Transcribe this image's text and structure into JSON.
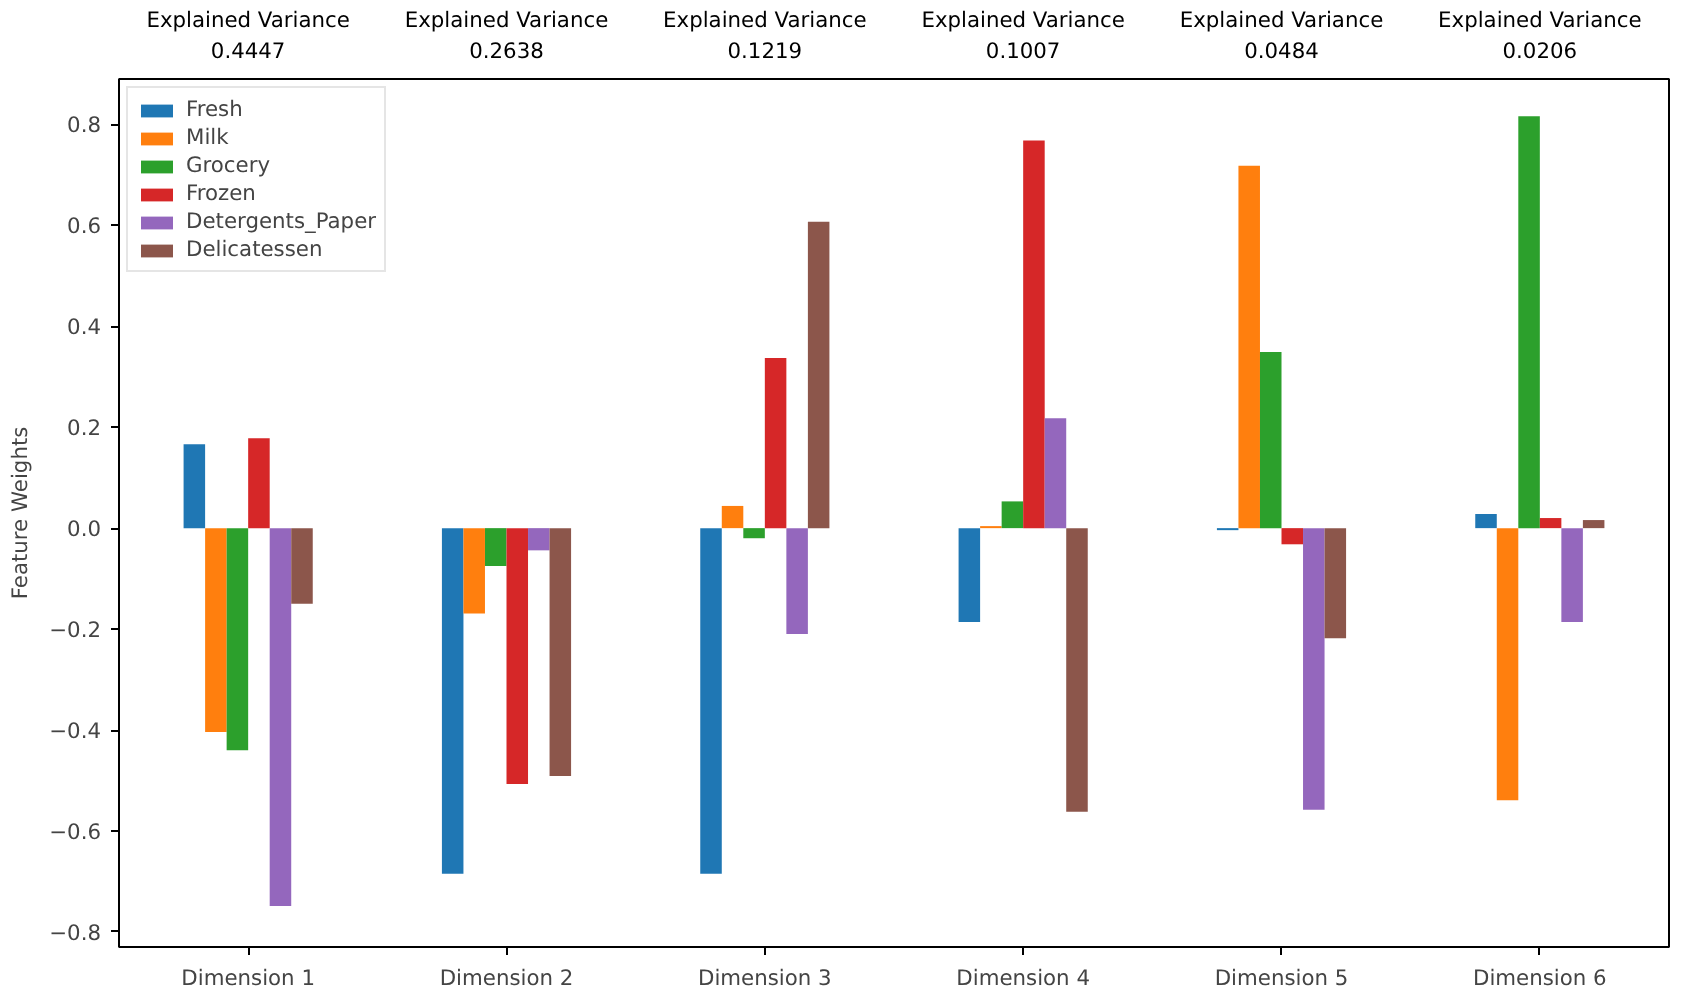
{
  "chart_data": {
    "type": "bar",
    "ylabel": "Feature Weights",
    "categories": [
      "Dimension 1",
      "Dimension 2",
      "Dimension 3",
      "Dimension 4",
      "Dimension 5",
      "Dimension 6"
    ],
    "series": [
      {
        "name": "Fresh",
        "color": "#1f77b4",
        "values": [
          0.166,
          -0.685,
          -0.685,
          -0.186,
          -0.004,
          0.028
        ]
      },
      {
        "name": "Milk",
        "color": "#ff7f0e",
        "values": [
          -0.404,
          -0.169,
          0.044,
          0.004,
          0.718,
          -0.539
        ]
      },
      {
        "name": "Grocery",
        "color": "#2ca02c",
        "values": [
          -0.44,
          -0.075,
          -0.02,
          0.053,
          0.349,
          0.816
        ]
      },
      {
        "name": "Frozen",
        "color": "#d62728",
        "values": [
          0.178,
          -0.507,
          0.337,
          0.768,
          -0.032,
          0.02
        ]
      },
      {
        "name": "Detergents_Paper",
        "color": "#9467bd",
        "values": [
          -0.749,
          -0.044,
          -0.21,
          0.218,
          -0.558,
          -0.186
        ]
      },
      {
        "name": "Delicatessen",
        "color": "#8c564b",
        "values": [
          -0.15,
          -0.491,
          0.607,
          -0.562,
          -0.218,
          0.016
        ]
      }
    ],
    "annotations": [
      "Explained Variance\n0.4447",
      "Explained Variance\n0.2638",
      "Explained Variance\n0.1219",
      "Explained Variance\n0.1007",
      "Explained Variance\n0.0484",
      "Explained Variance\n0.0206"
    ],
    "ylim": [
      -0.83,
      0.89
    ],
    "yticks": [
      {
        "value": -0.8,
        "label": "−0.8"
      },
      {
        "value": -0.6,
        "label": "−0.6"
      },
      {
        "value": -0.4,
        "label": "−0.4"
      },
      {
        "value": -0.2,
        "label": "−0.2"
      },
      {
        "value": 0,
        "label": "0.0"
      },
      0.2,
      0.4,
      0.6,
      0.8
    ],
    "grid": false,
    "legend": "top left"
  }
}
